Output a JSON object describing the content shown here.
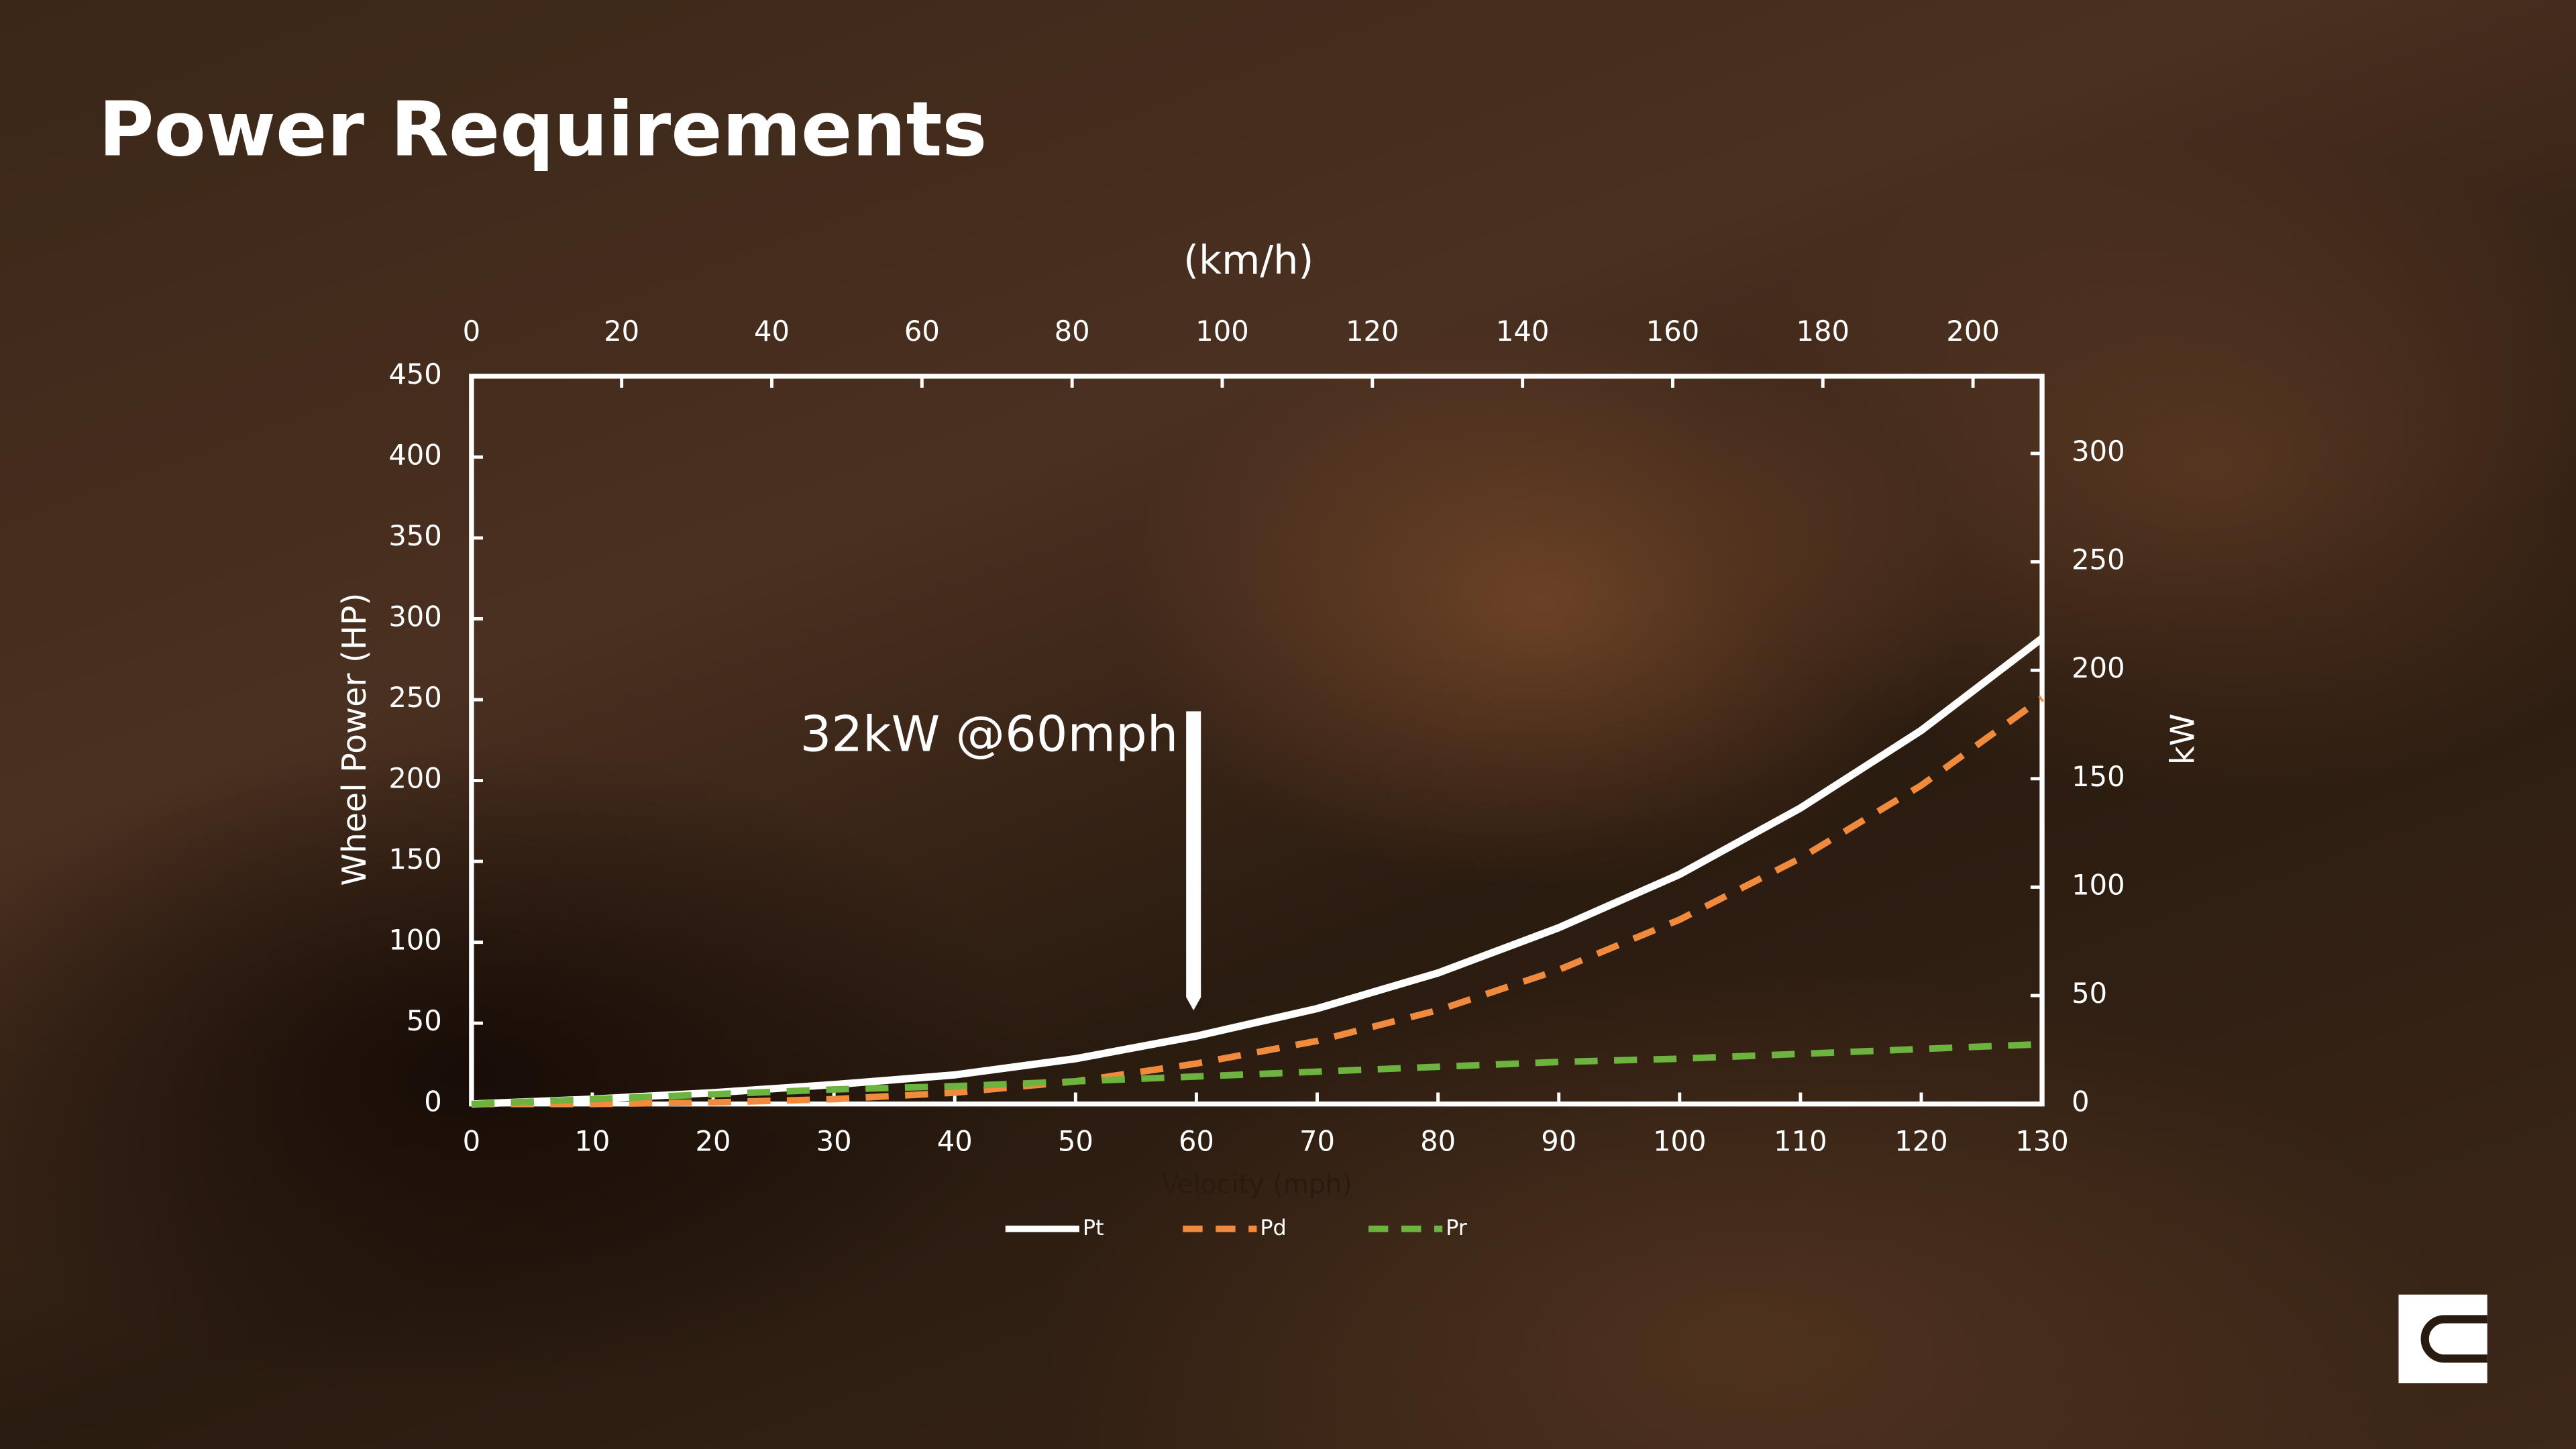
{
  "chart_data": {
    "type": "line",
    "title": "Power Requirements",
    "x_label": "Velocity (mph)",
    "x2_label": "(km/h)",
    "y_label": "Wheel Power (HP)",
    "y2_label": "kW",
    "annotation": "32kW @60mph",
    "x": [
      0,
      10,
      20,
      30,
      40,
      50,
      60,
      70,
      80,
      90,
      100,
      110,
      120,
      130
    ],
    "series": [
      {
        "name": "Pt",
        "color": "#ffffff",
        "dash": false,
        "values": [
          0,
          3,
          7,
          12,
          18,
          28,
          42,
          59,
          81,
          109,
          142,
          183,
          231,
          288
        ]
      },
      {
        "name": "Pd",
        "color": "#f08a3c",
        "dash": true,
        "values": [
          0,
          0,
          1,
          3,
          7,
          14,
          25,
          39,
          58,
          83,
          114,
          152,
          197,
          251
        ]
      },
      {
        "name": "Pr",
        "color": "#6cb33f",
        "dash": true,
        "values": [
          0,
          3,
          6,
          9,
          11,
          14,
          17,
          20,
          23,
          26,
          28,
          31,
          34,
          37
        ]
      }
    ],
    "xlim": [
      0,
      130
    ],
    "xticks": [
      0,
      10,
      20,
      30,
      40,
      50,
      60,
      70,
      80,
      90,
      100,
      110,
      120,
      130
    ],
    "x2lim": [
      0,
      209.2
    ],
    "x2ticks": [
      0,
      20,
      40,
      60,
      80,
      100,
      120,
      140,
      160,
      180,
      200
    ],
    "ylim": [
      0,
      450
    ],
    "yticks": [
      0,
      50,
      100,
      150,
      200,
      250,
      300,
      350,
      400,
      450
    ],
    "y2lim": [
      0,
      335.6
    ],
    "y2ticks": [
      0,
      50,
      100,
      150,
      200,
      250,
      300
    ]
  }
}
